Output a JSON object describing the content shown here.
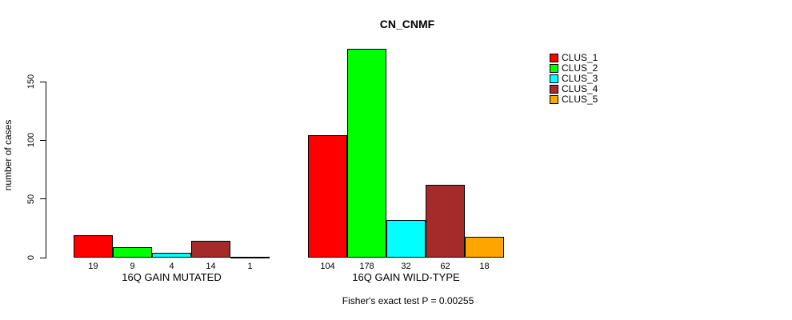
{
  "chart_data": {
    "type": "bar",
    "title": "CN_CNMF",
    "xlabel": "",
    "ylabel": "number of cases",
    "ylim": [
      0,
      183
    ],
    "y_ticks": [
      0,
      50,
      100,
      150
    ],
    "grid": false,
    "legend_position": "right",
    "series_names": [
      "CLUS_1",
      "CLUS_2",
      "CLUS_3",
      "CLUS_4",
      "CLUS_5"
    ],
    "colors": [
      "#ff0000",
      "#00ff00",
      "#00ffff",
      "#a52a2a",
      "#ffa500"
    ],
    "groups": [
      {
        "label": "16Q GAIN MUTATED",
        "values": [
          19,
          9,
          4,
          14,
          1
        ]
      },
      {
        "label": "16Q GAIN WILD-TYPE",
        "values": [
          104,
          178,
          32,
          62,
          18
        ]
      }
    ],
    "annotation": "Fisher's exact test P = 0.00255"
  }
}
